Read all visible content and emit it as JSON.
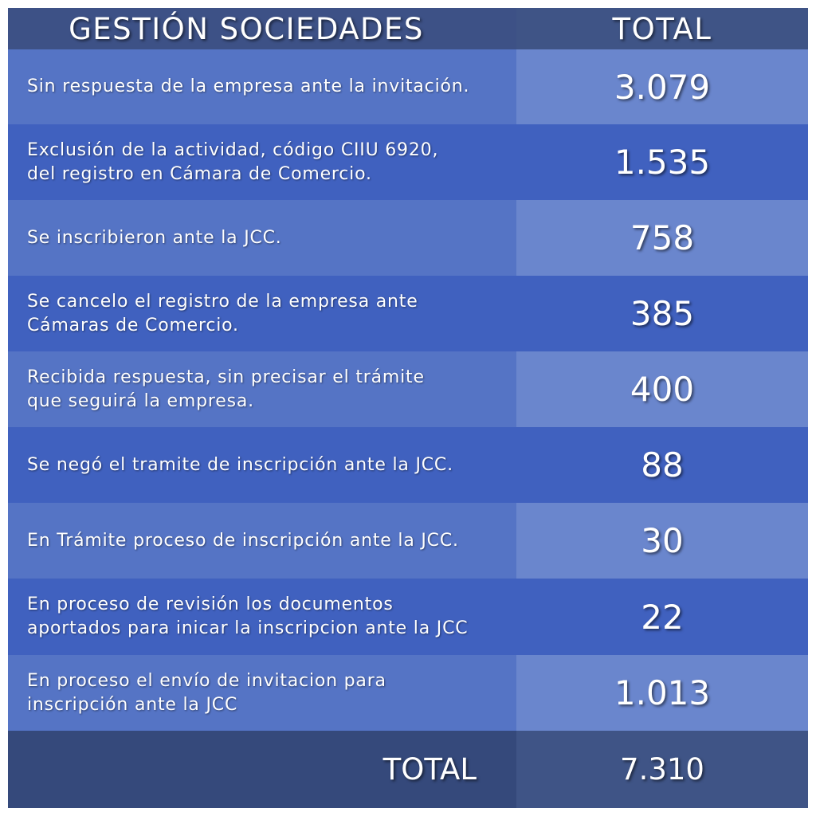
{
  "header": {
    "left": "GESTIÓN SOCIEDADES",
    "right": "TOTAL"
  },
  "rows": [
    {
      "text": "Sin respuesta de la empresa ante la invitación.",
      "value": "3.079"
    },
    {
      "text": "Exclusión de la actividad, código CIIU 6920,\ndel registro en Cámara de Comercio.",
      "value": "1.535"
    },
    {
      "text": "Se inscribieron ante la JCC.",
      "value": "758"
    },
    {
      "text": "Se cancelo el registro de la empresa ante\nCámaras de Comercio.",
      "value": "385"
    },
    {
      "text": "Recibida respuesta, sin precisar el trámite\nque seguirá la empresa.",
      "value": "400"
    },
    {
      "text": "Se negó el tramite de inscripción ante la JCC.",
      "value": "88"
    },
    {
      "text": "En Trámite proceso de inscripción ante la JCC.",
      "value": "30"
    },
    {
      "text": "En proceso de revisión los documentos\naportados para inicar la inscripcion ante la JCC",
      "value": "22"
    },
    {
      "text": "En proceso el envío de invitacion para\ninscripción ante la JCC",
      "value": "1.013"
    }
  ],
  "total": {
    "label": "TOTAL",
    "value": "7.310"
  }
}
